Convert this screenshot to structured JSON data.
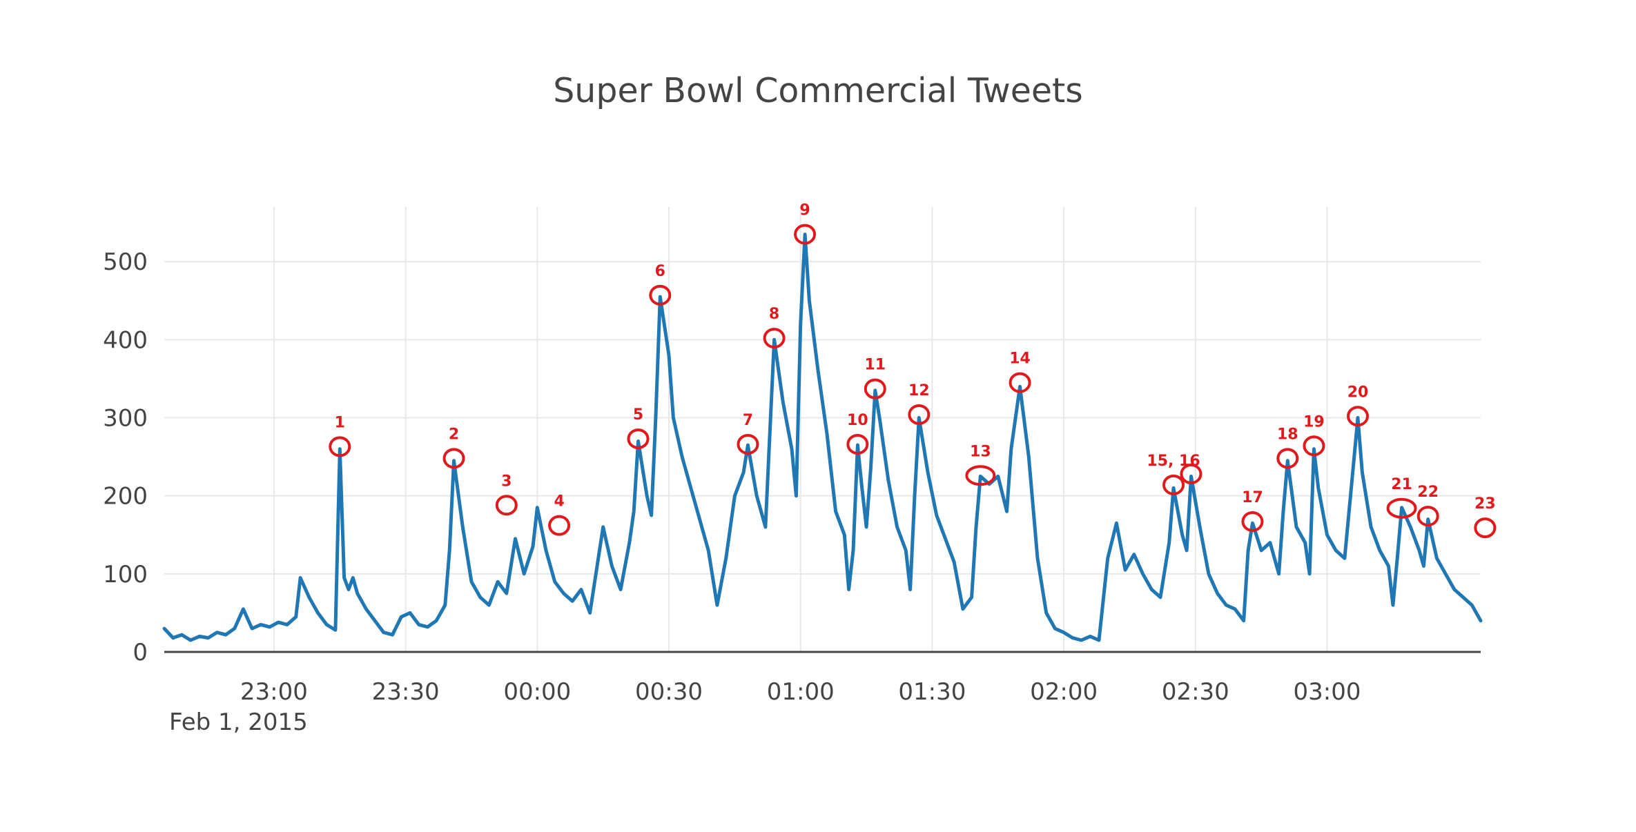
{
  "chart_data": {
    "type": "line",
    "title": "Super Bowl Commercial Tweets",
    "xlabel": "",
    "ylabel": "",
    "x_axis_kind": "time",
    "x_start": "22:35",
    "x_end": "03:35",
    "date_label": "Feb 1, 2015",
    "xlim": [
      "22:35",
      "03:35"
    ],
    "ylim": [
      0,
      570
    ],
    "grid": true,
    "x_ticks": [
      {
        "time": "23:00",
        "label": "23:00"
      },
      {
        "time": "23:30",
        "label": "23:30"
      },
      {
        "time": "00:00",
        "label": "00:00"
      },
      {
        "time": "00:30",
        "label": "00:30"
      },
      {
        "time": "01:00",
        "label": "01:00"
      },
      {
        "time": "01:30",
        "label": "01:30"
      },
      {
        "time": "02:00",
        "label": "02:00"
      },
      {
        "time": "02:30",
        "label": "02:30"
      },
      {
        "time": "03:00",
        "label": "03:00"
      }
    ],
    "y_ticks": [
      {
        "value": 0,
        "label": "0"
      },
      {
        "value": 100,
        "label": "100"
      },
      {
        "value": 200,
        "label": "200"
      },
      {
        "value": 300,
        "label": "300"
      },
      {
        "value": 400,
        "label": "400"
      },
      {
        "value": 500,
        "label": "500"
      }
    ],
    "series": [
      {
        "color": "#1f77b4",
        "points": [
          {
            "t": "22:35",
            "y": 30
          },
          {
            "t": "22:37",
            "y": 18
          },
          {
            "t": "22:39",
            "y": 22
          },
          {
            "t": "22:41",
            "y": 15
          },
          {
            "t": "22:43",
            "y": 20
          },
          {
            "t": "22:45",
            "y": 18
          },
          {
            "t": "22:47",
            "y": 25
          },
          {
            "t": "22:49",
            "y": 22
          },
          {
            "t": "22:51",
            "y": 30
          },
          {
            "t": "22:53",
            "y": 55
          },
          {
            "t": "22:55",
            "y": 30
          },
          {
            "t": "22:57",
            "y": 35
          },
          {
            "t": "22:59",
            "y": 32
          },
          {
            "t": "23:01",
            "y": 38
          },
          {
            "t": "23:03",
            "y": 35
          },
          {
            "t": "23:05",
            "y": 45
          },
          {
            "t": "23:06",
            "y": 95
          },
          {
            "t": "23:08",
            "y": 70
          },
          {
            "t": "23:10",
            "y": 50
          },
          {
            "t": "23:12",
            "y": 35
          },
          {
            "t": "23:14",
            "y": 28
          },
          {
            "t": "23:15",
            "y": 260
          },
          {
            "t": "23:16",
            "y": 95
          },
          {
            "t": "23:17",
            "y": 80
          },
          {
            "t": "23:18",
            "y": 95
          },
          {
            "t": "23:19",
            "y": 75
          },
          {
            "t": "23:21",
            "y": 55
          },
          {
            "t": "23:23",
            "y": 40
          },
          {
            "t": "23:25",
            "y": 25
          },
          {
            "t": "23:27",
            "y": 22
          },
          {
            "t": "23:29",
            "y": 45
          },
          {
            "t": "23:31",
            "y": 50
          },
          {
            "t": "23:33",
            "y": 35
          },
          {
            "t": "23:35",
            "y": 32
          },
          {
            "t": "23:37",
            "y": 40
          },
          {
            "t": "23:39",
            "y": 60
          },
          {
            "t": "23:40",
            "y": 130
          },
          {
            "t": "23:41",
            "y": 245
          },
          {
            "t": "23:43",
            "y": 160
          },
          {
            "t": "23:45",
            "y": 90
          },
          {
            "t": "23:47",
            "y": 70
          },
          {
            "t": "23:49",
            "y": 60
          },
          {
            "t": "23:51",
            "y": 90
          },
          {
            "t": "23:53",
            "y": 75
          },
          {
            "t": "23:55",
            "y": 145
          },
          {
            "t": "23:57",
            "y": 100
          },
          {
            "t": "23:59",
            "y": 135
          },
          {
            "t": "00:00",
            "y": 185
          },
          {
            "t": "00:02",
            "y": 130
          },
          {
            "t": "00:04",
            "y": 90
          },
          {
            "t": "00:06",
            "y": 75
          },
          {
            "t": "00:08",
            "y": 65
          },
          {
            "t": "00:10",
            "y": 80
          },
          {
            "t": "00:12",
            "y": 50
          },
          {
            "t": "00:15",
            "y": 160
          },
          {
            "t": "00:17",
            "y": 110
          },
          {
            "t": "00:19",
            "y": 80
          },
          {
            "t": "00:21",
            "y": 140
          },
          {
            "t": "00:22",
            "y": 180
          },
          {
            "t": "00:23",
            "y": 270
          },
          {
            "t": "00:25",
            "y": 200
          },
          {
            "t": "00:26",
            "y": 175
          },
          {
            "t": "00:27",
            "y": 300
          },
          {
            "t": "00:28",
            "y": 455
          },
          {
            "t": "00:30",
            "y": 380
          },
          {
            "t": "00:31",
            "y": 300
          },
          {
            "t": "00:33",
            "y": 250
          },
          {
            "t": "00:35",
            "y": 210
          },
          {
            "t": "00:37",
            "y": 170
          },
          {
            "t": "00:39",
            "y": 130
          },
          {
            "t": "00:41",
            "y": 60
          },
          {
            "t": "00:43",
            "y": 120
          },
          {
            "t": "00:45",
            "y": 200
          },
          {
            "t": "00:47",
            "y": 230
          },
          {
            "t": "00:48",
            "y": 265
          },
          {
            "t": "00:50",
            "y": 200
          },
          {
            "t": "00:52",
            "y": 160
          },
          {
            "t": "00:53",
            "y": 280
          },
          {
            "t": "00:54",
            "y": 400
          },
          {
            "t": "00:56",
            "y": 320
          },
          {
            "t": "00:58",
            "y": 260
          },
          {
            "t": "00:59",
            "y": 200
          },
          {
            "t": "01:00",
            "y": 420
          },
          {
            "t": "01:01",
            "y": 535
          },
          {
            "t": "01:02",
            "y": 450
          },
          {
            "t": "01:04",
            "y": 360
          },
          {
            "t": "01:06",
            "y": 280
          },
          {
            "t": "01:08",
            "y": 180
          },
          {
            "t": "01:10",
            "y": 150
          },
          {
            "t": "01:11",
            "y": 80
          },
          {
            "t": "01:12",
            "y": 130
          },
          {
            "t": "01:13",
            "y": 265
          },
          {
            "t": "01:14",
            "y": 210
          },
          {
            "t": "01:15",
            "y": 160
          },
          {
            "t": "01:16",
            "y": 235
          },
          {
            "t": "01:17",
            "y": 335
          },
          {
            "t": "01:18",
            "y": 300
          },
          {
            "t": "01:20",
            "y": 220
          },
          {
            "t": "01:22",
            "y": 160
          },
          {
            "t": "01:24",
            "y": 130
          },
          {
            "t": "01:25",
            "y": 80
          },
          {
            "t": "01:26",
            "y": 200
          },
          {
            "t": "01:27",
            "y": 300
          },
          {
            "t": "01:29",
            "y": 230
          },
          {
            "t": "01:31",
            "y": 175
          },
          {
            "t": "01:33",
            "y": 145
          },
          {
            "t": "01:35",
            "y": 115
          },
          {
            "t": "01:37",
            "y": 55
          },
          {
            "t": "01:39",
            "y": 70
          },
          {
            "t": "01:40",
            "y": 160
          },
          {
            "t": "01:41",
            "y": 225
          },
          {
            "t": "01:43",
            "y": 215
          },
          {
            "t": "01:45",
            "y": 225
          },
          {
            "t": "01:47",
            "y": 180
          },
          {
            "t": "01:48",
            "y": 260
          },
          {
            "t": "01:50",
            "y": 340
          },
          {
            "t": "01:52",
            "y": 250
          },
          {
            "t": "01:54",
            "y": 120
          },
          {
            "t": "01:56",
            "y": 50
          },
          {
            "t": "01:58",
            "y": 30
          },
          {
            "t": "02:00",
            "y": 25
          },
          {
            "t": "02:02",
            "y": 18
          },
          {
            "t": "02:04",
            "y": 15
          },
          {
            "t": "02:06",
            "y": 20
          },
          {
            "t": "02:08",
            "y": 15
          },
          {
            "t": "02:10",
            "y": 120
          },
          {
            "t": "02:12",
            "y": 165
          },
          {
            "t": "02:14",
            "y": 105
          },
          {
            "t": "02:16",
            "y": 125
          },
          {
            "t": "02:18",
            "y": 100
          },
          {
            "t": "02:20",
            "y": 80
          },
          {
            "t": "02:22",
            "y": 70
          },
          {
            "t": "02:24",
            "y": 140
          },
          {
            "t": "02:25",
            "y": 210
          },
          {
            "t": "02:27",
            "y": 150
          },
          {
            "t": "02:28",
            "y": 130
          },
          {
            "t": "02:29",
            "y": 225
          },
          {
            "t": "02:31",
            "y": 160
          },
          {
            "t": "02:33",
            "y": 100
          },
          {
            "t": "02:35",
            "y": 75
          },
          {
            "t": "02:37",
            "y": 60
          },
          {
            "t": "02:39",
            "y": 55
          },
          {
            "t": "02:41",
            "y": 40
          },
          {
            "t": "02:42",
            "y": 130
          },
          {
            "t": "02:43",
            "y": 165
          },
          {
            "t": "02:45",
            "y": 130
          },
          {
            "t": "02:47",
            "y": 140
          },
          {
            "t": "02:49",
            "y": 100
          },
          {
            "t": "02:50",
            "y": 180
          },
          {
            "t": "02:51",
            "y": 245
          },
          {
            "t": "02:53",
            "y": 160
          },
          {
            "t": "02:55",
            "y": 140
          },
          {
            "t": "02:56",
            "y": 100
          },
          {
            "t": "02:57",
            "y": 260
          },
          {
            "t": "02:58",
            "y": 210
          },
          {
            "t": "03:00",
            "y": 150
          },
          {
            "t": "03:02",
            "y": 130
          },
          {
            "t": "03:04",
            "y": 120
          },
          {
            "t": "03:06",
            "y": 240
          },
          {
            "t": "03:07",
            "y": 300
          },
          {
            "t": "03:08",
            "y": 230
          },
          {
            "t": "03:10",
            "y": 160
          },
          {
            "t": "03:12",
            "y": 130
          },
          {
            "t": "03:14",
            "y": 110
          },
          {
            "t": "03:15",
            "y": 60
          },
          {
            "t": "03:16",
            "y": 120
          },
          {
            "t": "03:17",
            "y": 185
          },
          {
            "t": "03:19",
            "y": 160
          },
          {
            "t": "03:21",
            "y": 130
          },
          {
            "t": "03:22",
            "y": 110
          },
          {
            "t": "03:23",
            "y": 170
          },
          {
            "t": "03:25",
            "y": 120
          },
          {
            "t": "03:27",
            "y": 100
          },
          {
            "t": "03:29",
            "y": 80
          },
          {
            "t": "03:31",
            "y": 70
          },
          {
            "t": "03:33",
            "y": 60
          },
          {
            "t": "03:35",
            "y": 40
          }
        ]
      }
    ],
    "annotations": [
      {
        "label": "1",
        "t": "23:15",
        "y": 263
      },
      {
        "label": "2",
        "t": "23:41",
        "y": 248
      },
      {
        "label": "3",
        "t": "23:53",
        "y": 188
      },
      {
        "label": "4",
        "t": "00:05",
        "y": 162
      },
      {
        "label": "5",
        "t": "00:23",
        "y": 273
      },
      {
        "label": "6",
        "t": "00:28",
        "y": 457
      },
      {
        "label": "7",
        "t": "00:48",
        "y": 266
      },
      {
        "label": "8",
        "t": "00:54",
        "y": 402
      },
      {
        "label": "9",
        "t": "01:01",
        "y": 535
      },
      {
        "label": "10",
        "t": "01:13",
        "y": 266
      },
      {
        "label": "11",
        "t": "01:17",
        "y": 337
      },
      {
        "label": "12",
        "t": "01:27",
        "y": 304
      },
      {
        "label": "13",
        "t": "01:41",
        "y": 226
      },
      {
        "label": "14",
        "t": "01:50",
        "y": 345
      },
      {
        "label": "15, 16",
        "t": "02:25",
        "y": 214
      },
      {
        "label": "",
        "t": "02:29",
        "y": 228
      },
      {
        "label": "17",
        "t": "02:43",
        "y": 167
      },
      {
        "label": "18",
        "t": "02:51",
        "y": 248
      },
      {
        "label": "19",
        "t": "02:57",
        "y": 264
      },
      {
        "label": "20",
        "t": "03:07",
        "y": 302
      },
      {
        "label": "21",
        "t": "03:17",
        "y": 184
      },
      {
        "label": "22",
        "t": "03:23",
        "y": 174
      },
      {
        "label": "23",
        "t": "03:36",
        "y": 159
      }
    ]
  }
}
